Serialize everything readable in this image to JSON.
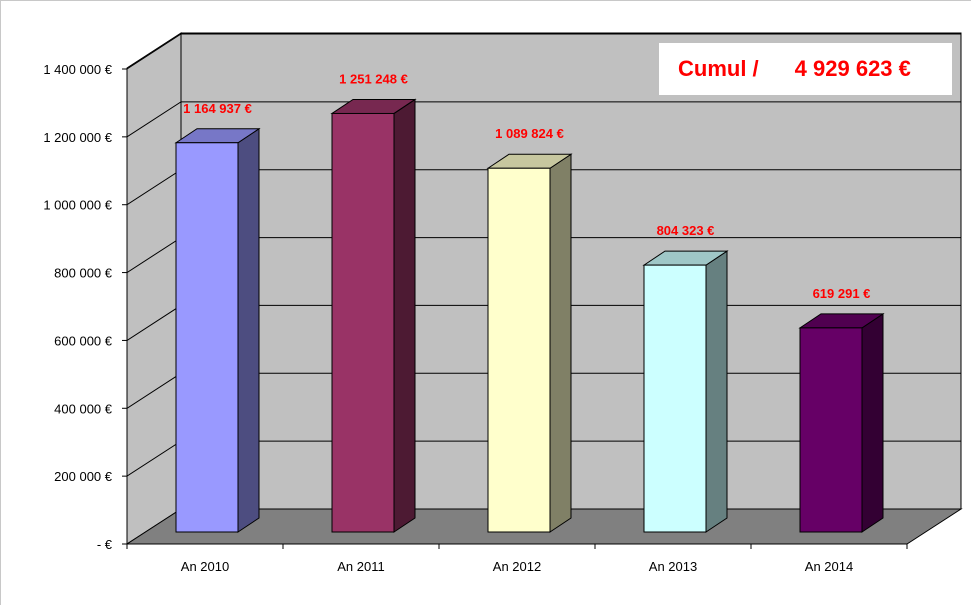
{
  "chart_data": {
    "type": "bar",
    "categories": [
      "An 2010",
      "An 2011",
      "An 2012",
      "An 2013",
      "An 2014"
    ],
    "values": [
      1164937,
      1251248,
      1089824,
      804323,
      619291
    ],
    "data_labels": [
      "1 164 937 €",
      "1 251 248 €",
      "1 089 824 €",
      "804 323 €",
      "619 291 €"
    ],
    "yticks": [
      0,
      200000,
      400000,
      600000,
      800000,
      1000000,
      1200000,
      1400000
    ],
    "ytick_labels": [
      "- €",
      "200 000 €",
      "400 000 €",
      "600 000 €",
      "800 000 €",
      "1 000 000 €",
      "1 200 000 €",
      "1 400 000 €"
    ],
    "ylim": [
      0,
      1400000
    ],
    "grid": true,
    "three_d": true,
    "colors": {
      "bars": [
        "#9999ff",
        "#993366",
        "#ffffcc",
        "#ccffff",
        "#660066"
      ],
      "wall": "#c0c0c0",
      "floor": "#808080",
      "label": "#ff0000"
    },
    "annotation": {
      "label": "Cumul /",
      "value": "4 929 623 €"
    }
  }
}
